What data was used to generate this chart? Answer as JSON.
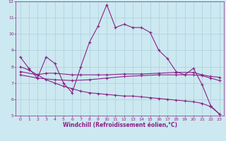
{
  "title": "",
  "xlabel": "Windchill (Refroidissement éolien,°C)",
  "ylabel": "",
  "background_color": "#cce8f0",
  "grid_color": "#aacfdc",
  "line_color": "#882288",
  "xlim": [
    -0.5,
    23.5
  ],
  "ylim": [
    5,
    12
  ],
  "yticks": [
    5,
    6,
    7,
    8,
    9,
    10,
    11,
    12
  ],
  "xticks": [
    0,
    1,
    2,
    3,
    4,
    5,
    6,
    7,
    8,
    9,
    10,
    11,
    12,
    13,
    14,
    15,
    16,
    17,
    18,
    19,
    20,
    21,
    22,
    23
  ],
  "series": [
    {
      "x": [
        0,
        1,
        2,
        3,
        4,
        5,
        6,
        7,
        8,
        9,
        10,
        11,
        12,
        13,
        14,
        15,
        16,
        17,
        18,
        19,
        20,
        21,
        22,
        23
      ],
      "y": [
        8.6,
        7.9,
        7.3,
        8.6,
        8.2,
        7.0,
        6.4,
        8.0,
        9.5,
        10.5,
        11.8,
        10.4,
        10.6,
        10.4,
        10.4,
        10.1,
        9.0,
        8.5,
        7.7,
        7.5,
        7.9,
        6.9,
        5.6,
        5.1
      ]
    },
    {
      "x": [
        0,
        2,
        3,
        4,
        6,
        7,
        9,
        10,
        12,
        14,
        16,
        18,
        20,
        21,
        22,
        23
      ],
      "y": [
        7.7,
        7.5,
        7.6,
        7.6,
        7.5,
        7.5,
        7.5,
        7.5,
        7.55,
        7.55,
        7.6,
        7.65,
        7.65,
        7.5,
        7.4,
        7.35
      ]
    },
    {
      "x": [
        0,
        2,
        4,
        6,
        8,
        10,
        12,
        14,
        16,
        18,
        19,
        20,
        21,
        22,
        23
      ],
      "y": [
        7.5,
        7.3,
        7.2,
        7.15,
        7.2,
        7.3,
        7.4,
        7.45,
        7.5,
        7.5,
        7.5,
        7.5,
        7.45,
        7.3,
        7.15
      ]
    },
    {
      "x": [
        0,
        1,
        2,
        3,
        4,
        5,
        6,
        7,
        8,
        9,
        10,
        11,
        12,
        13,
        14,
        15,
        16,
        17,
        18,
        19,
        20,
        21,
        22,
        23
      ],
      "y": [
        8.0,
        7.8,
        7.5,
        7.2,
        7.0,
        6.8,
        6.65,
        6.5,
        6.4,
        6.35,
        6.3,
        6.25,
        6.2,
        6.2,
        6.15,
        6.1,
        6.05,
        6.0,
        5.95,
        5.9,
        5.85,
        5.75,
        5.55,
        5.1
      ]
    }
  ],
  "marker": "+",
  "markersize": 3,
  "linewidth": 0.8,
  "tick_fontsize": 4.5,
  "label_fontsize": 5.5,
  "label_fontweight": "bold"
}
